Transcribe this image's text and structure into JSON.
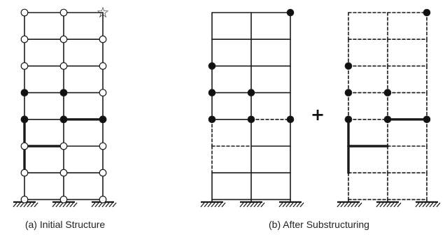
{
  "captions": {
    "a": "(a) Initial Structure",
    "b": "(b) After Substructuring"
  },
  "operator": "+",
  "marker_symbol": "☆",
  "colors": {
    "line": "#1a1a1a",
    "node_fill_solid": "#111111",
    "node_fill_open": "#ffffff"
  },
  "frames": [
    {
      "id": "initial-structure",
      "bays": 2,
      "stories": 7,
      "base_levels": 1,
      "node_style": "open",
      "nodes_solid": [
        [
          0,
          4
        ],
        [
          1,
          4
        ],
        [
          2,
          4
        ],
        [
          0,
          5
        ],
        [
          1,
          5
        ]
      ],
      "node_star": [
        2,
        8
      ],
      "heavy_members": [
        [
          "v",
          0,
          4,
          5
        ],
        [
          "v",
          0,
          5,
          6
        ],
        [
          "h",
          4,
          1,
          2
        ],
        [
          "h",
          5,
          0,
          1
        ]
      ],
      "dashed_members": []
    },
    {
      "id": "substructure-1",
      "bays": 2,
      "stories": 7,
      "base_levels": 1,
      "node_style": "none",
      "nodes_solid": [
        [
          2,
          8
        ],
        [
          0,
          4
        ],
        [
          1,
          4
        ],
        [
          2,
          4
        ],
        [
          0,
          5
        ],
        [
          1,
          5
        ],
        [
          0,
          6
        ]
      ],
      "heavy_members": [],
      "dashed_members": [
        [
          "v",
          0,
          4,
          5
        ],
        [
          "v",
          0,
          5,
          6
        ],
        [
          "h",
          4,
          1,
          2
        ],
        [
          "h",
          5,
          0,
          1
        ]
      ],
      "dashed_all": false
    },
    {
      "id": "substructure-2",
      "bays": 2,
      "stories": 7,
      "base_levels": 1,
      "node_style": "none",
      "nodes_solid": [
        [
          2,
          8
        ],
        [
          0,
          4
        ],
        [
          1,
          4
        ],
        [
          2,
          4
        ],
        [
          0,
          5
        ],
        [
          1,
          5
        ],
        [
          0,
          6
        ]
      ],
      "heavy_members": [
        [
          "v",
          0,
          4,
          5
        ],
        [
          "v",
          0,
          5,
          6
        ],
        [
          "h",
          4,
          1,
          2
        ],
        [
          "h",
          5,
          0,
          1
        ]
      ],
      "dashed_members": [],
      "dashed_all": true
    }
  ]
}
